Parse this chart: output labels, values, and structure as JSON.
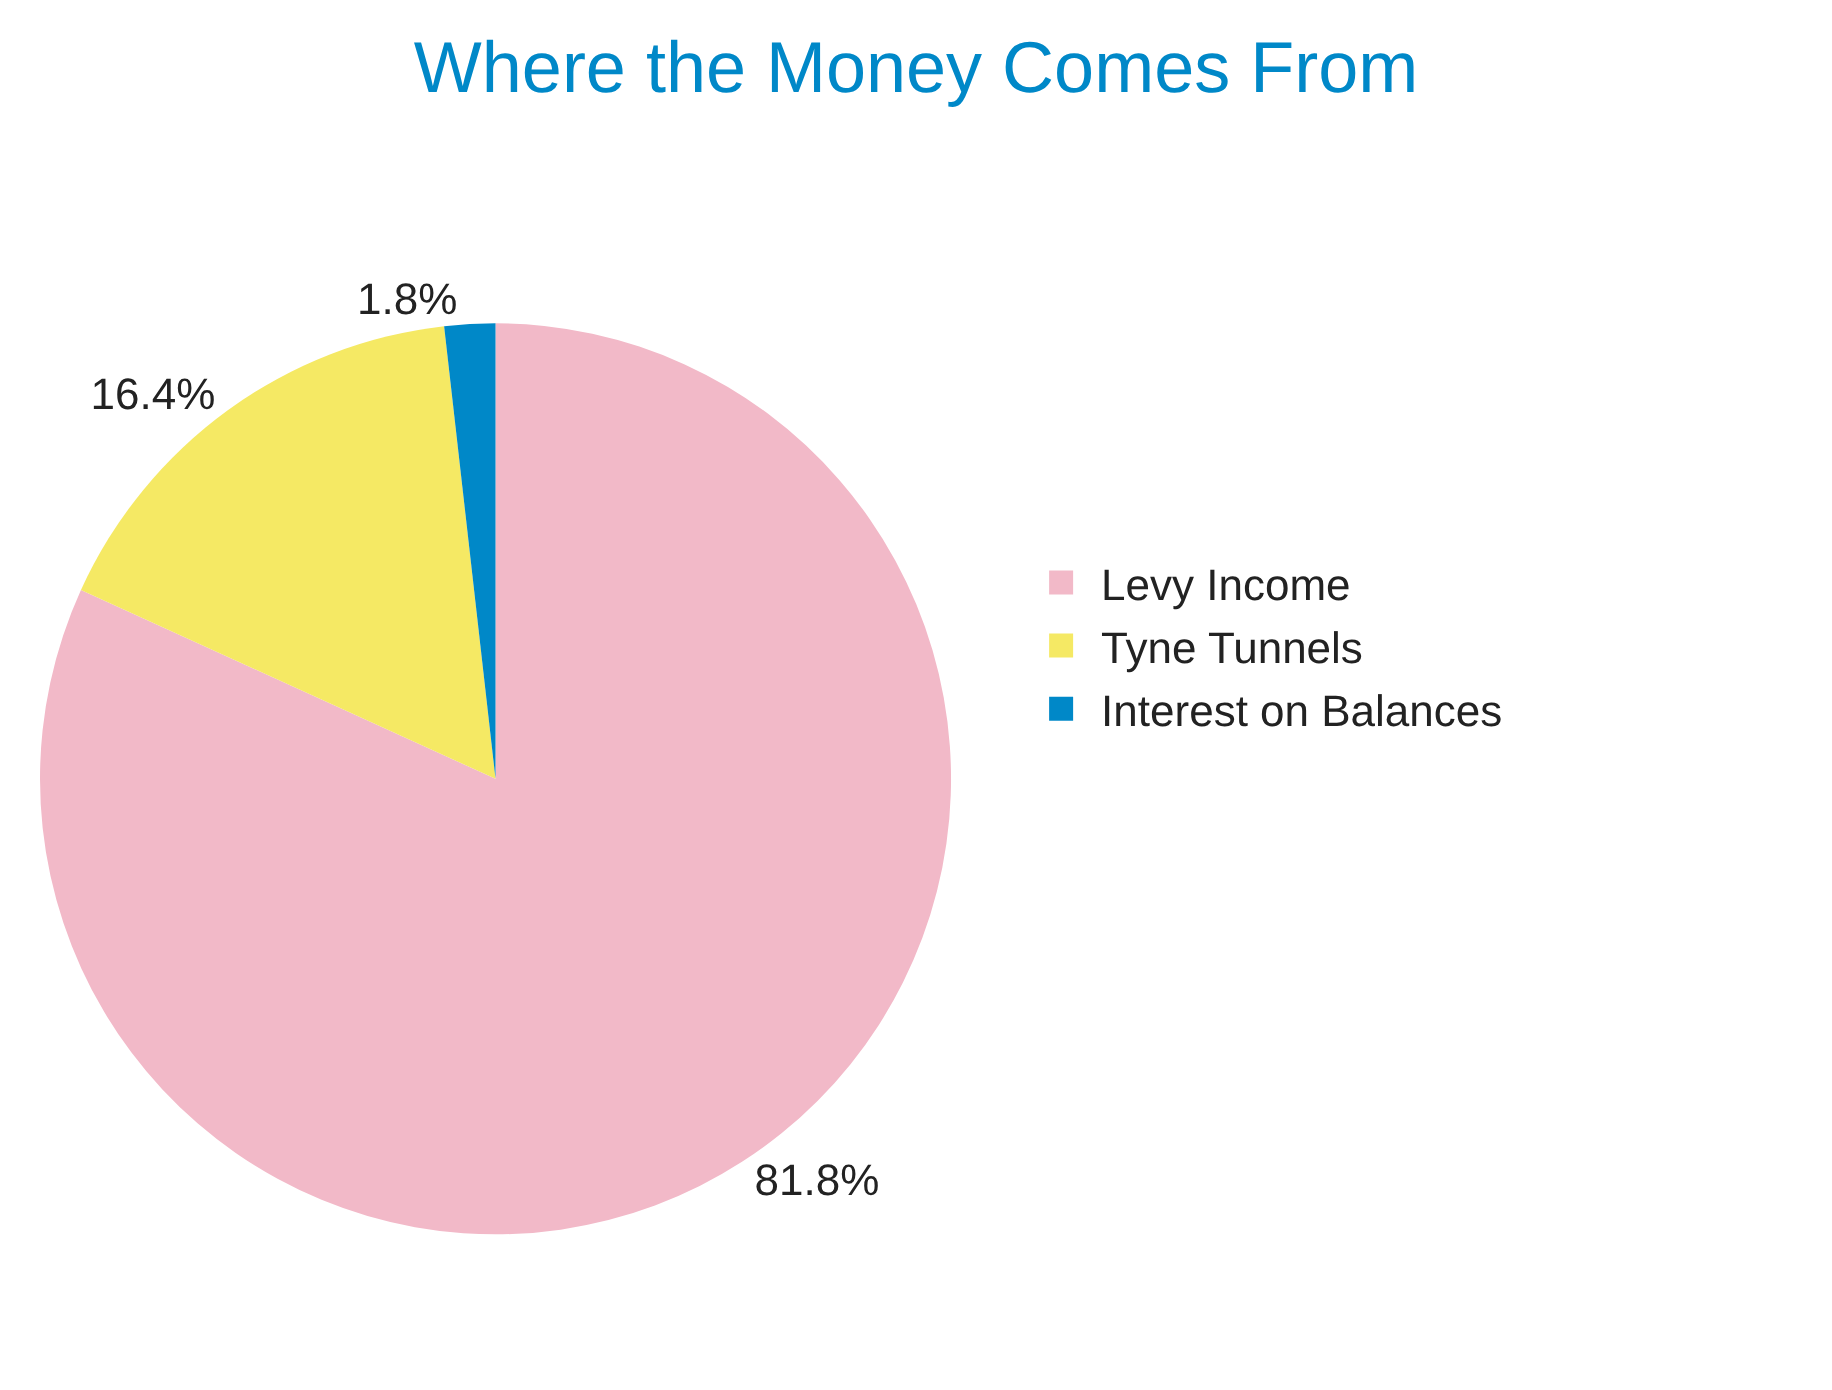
{
  "chart_data": {
    "type": "pie",
    "title": "Where the Money Comes From",
    "categories": [
      "Levy Income",
      "Tyne Tunnels",
      "Interest on Balances"
    ],
    "values": [
      81.8,
      16.4,
      1.8
    ],
    "colors": [
      "#f2b9c8",
      "#f5e964",
      "#0088c8"
    ],
    "value_labels": [
      "81.8%",
      "16.4%",
      "1.8%"
    ],
    "legend": "right"
  }
}
